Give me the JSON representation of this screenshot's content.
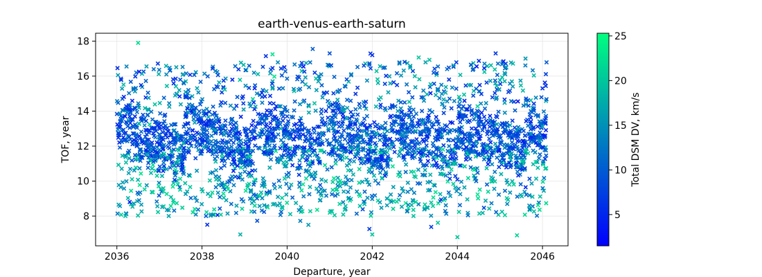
{
  "chart_data": {
    "type": "scatter",
    "title": "earth-venus-earth-saturn",
    "xlabel": "Departure, year",
    "ylabel": "TOF, year",
    "colorbar_label": "Total DSM DV, km/s",
    "xlim": [
      2035.5,
      2046.6
    ],
    "ylim": [
      6.3,
      18.45
    ],
    "clim": [
      1.5,
      25.3
    ],
    "x_ticks": [
      2036,
      2038,
      2040,
      2042,
      2044,
      2046
    ],
    "y_ticks": [
      8,
      10,
      12,
      14,
      16,
      18
    ],
    "colorbar_ticks": [
      5,
      10,
      15,
      20,
      25
    ],
    "colormap": "winter",
    "colormap_colors": [
      "#0000ff",
      "#00ff80"
    ],
    "marker": "x",
    "grid": true,
    "approx_point_count": 3000,
    "band_structure": {
      "description": "Points form diagonal bands: for each launch window, TOF decreases as departure year increases; windows repeat roughly every 1.6 years.",
      "window_period_years": 1.6,
      "tof_slope_per_year": -1.0
    },
    "sample_points": [
      {
        "x": 2036.5,
        "y": 17.9,
        "c": 22
      },
      {
        "x": 2036.3,
        "y": 13.7,
        "c": 6
      },
      {
        "x": 2037.0,
        "y": 13.1,
        "c": 6
      },
      {
        "x": 2037.5,
        "y": 12.4,
        "c": 7
      },
      {
        "x": 2038.0,
        "y": 11.7,
        "c": 6
      },
      {
        "x": 2038.3,
        "y": 13.9,
        "c": 7
      },
      {
        "x": 2039.0,
        "y": 13.0,
        "c": 8
      },
      {
        "x": 2040.0,
        "y": 13.7,
        "c": 8
      },
      {
        "x": 2040.6,
        "y": 17.55,
        "c": 10
      },
      {
        "x": 2041.0,
        "y": 17.3,
        "c": 9
      },
      {
        "x": 2042.0,
        "y": 17.2,
        "c": 6
      },
      {
        "x": 2042.6,
        "y": 13.7,
        "c": 7
      },
      {
        "x": 2043.3,
        "y": 12.6,
        "c": 6
      },
      {
        "x": 2044.0,
        "y": 11.9,
        "c": 8
      },
      {
        "x": 2044.9,
        "y": 17.3,
        "c": 7
      },
      {
        "x": 2045.6,
        "y": 17.0,
        "c": 16
      },
      {
        "x": 2046.0,
        "y": 15.3,
        "c": 6
      },
      {
        "x": 2038.9,
        "y": 6.95,
        "c": 18
      },
      {
        "x": 2042.0,
        "y": 6.95,
        "c": 20
      },
      {
        "x": 2044.0,
        "y": 6.8,
        "c": 20
      },
      {
        "x": 2045.4,
        "y": 6.9,
        "c": 21
      },
      {
        "x": 2036.2,
        "y": 8.0,
        "c": 19
      },
      {
        "x": 2040.5,
        "y": 7.5,
        "c": 16
      }
    ]
  }
}
